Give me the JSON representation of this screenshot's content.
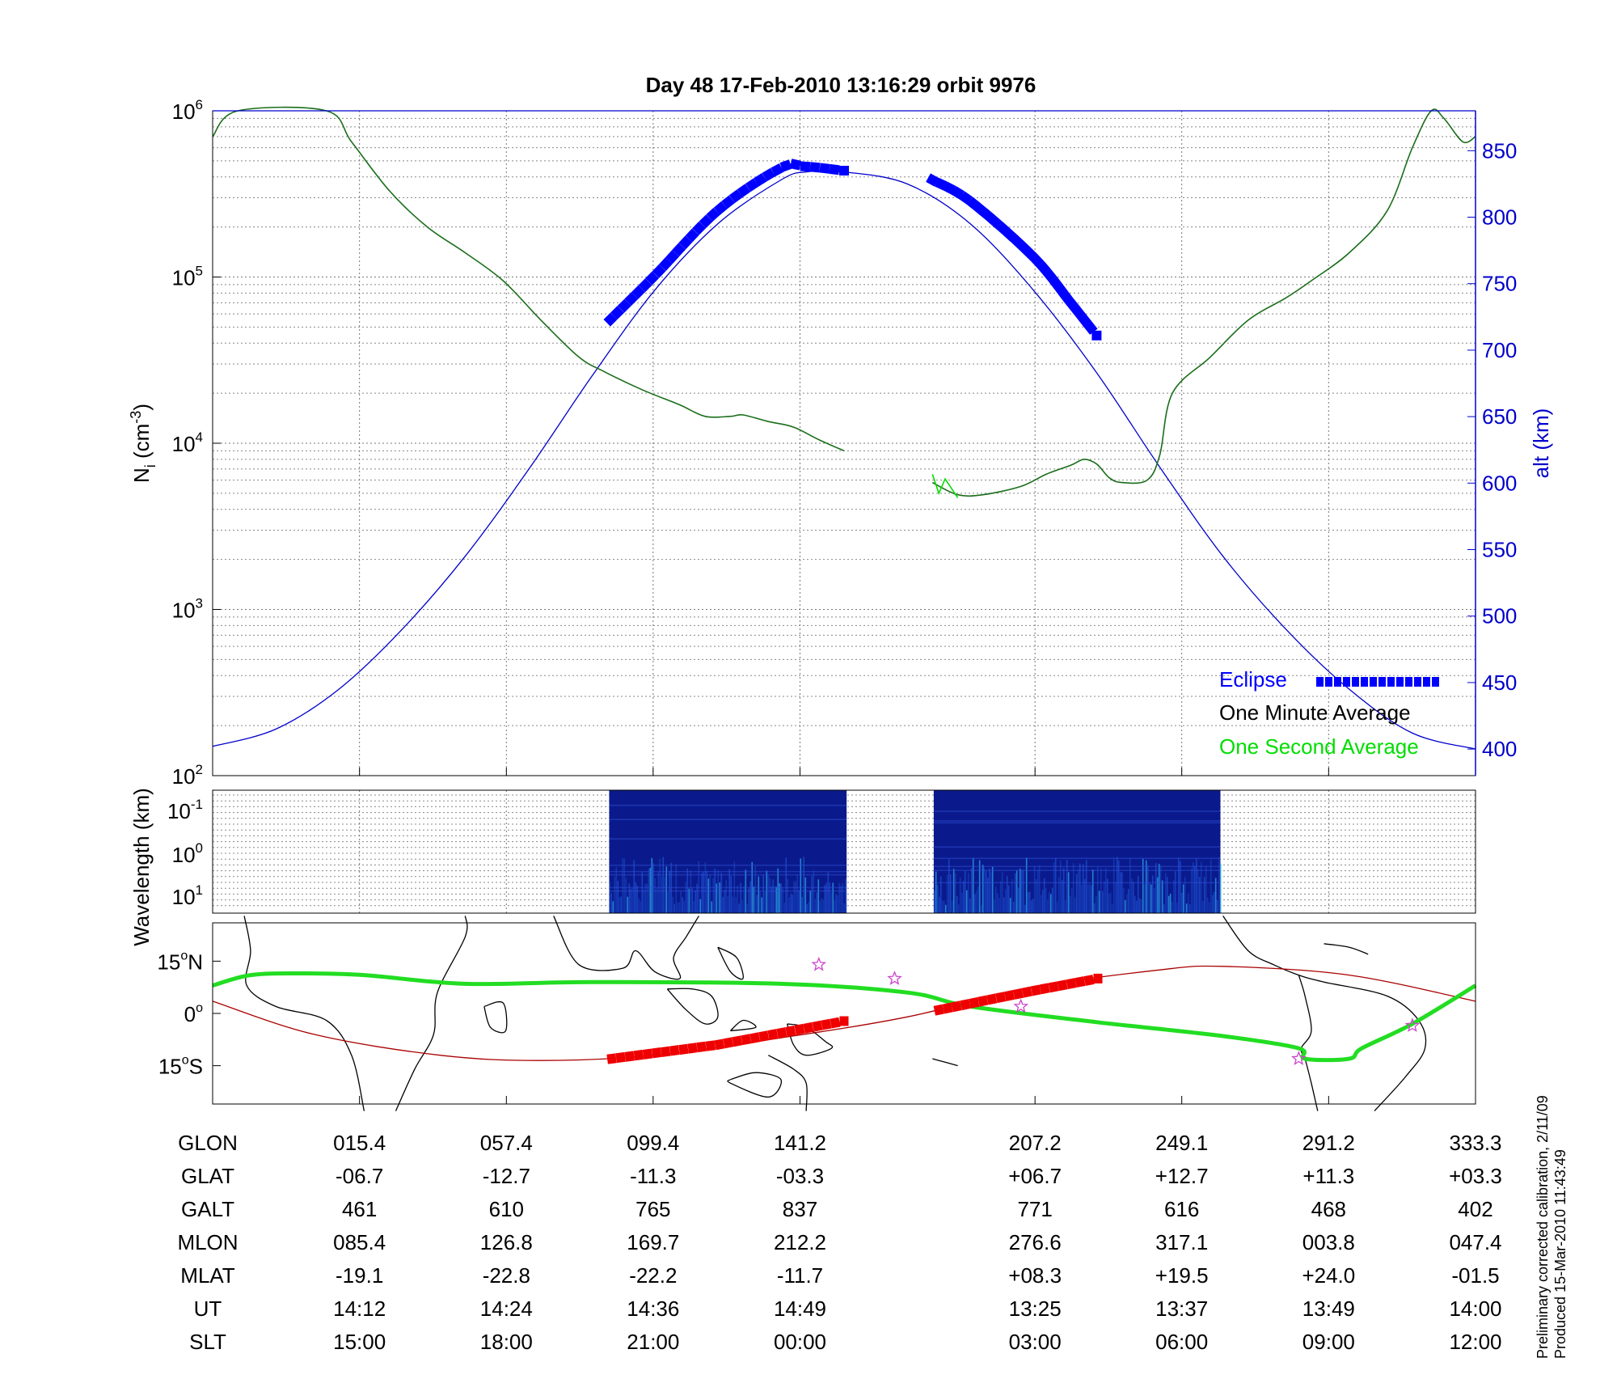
{
  "title": "Day 48  17-Feb-2010 13:16:29   orbit 9976",
  "colors": {
    "altitude": "#0000cc",
    "eclipse": "#0000ff",
    "one_minute": "#000000",
    "one_second": "#00dd00",
    "density_trace": "#1a6e1a",
    "track_green": "#22dd22",
    "track_red_line": "#aa0000",
    "track_red_marker": "#ee0000",
    "star": "#cc44cc",
    "spectrum_bg": "#0a1a8c"
  },
  "chart_data": [
    {
      "type": "line",
      "panel": "ion density and altitude",
      "ylabel": "Ni (cm-3)",
      "ylabel_base": "N",
      "ylabel_sub": "i",
      "ylabel_unit": " (cm",
      "ylabel_sup": "-3",
      "ylabel_close": ")",
      "yscale": "log",
      "ylim": [
        100,
        1000000
      ],
      "y_ticks": [
        {
          "base": "10",
          "exp": "2",
          "value": 100
        },
        {
          "base": "10",
          "exp": "3",
          "value": 1000
        },
        {
          "base": "10",
          "exp": "4",
          "value": 10000
        },
        {
          "base": "10",
          "exp": "5",
          "value": 100000
        },
        {
          "base": "10",
          "exp": "6",
          "value": 1000000
        }
      ],
      "y2label": "alt (km)",
      "y2lim": [
        380,
        880
      ],
      "y2_ticks": [
        "400",
        "450",
        "500",
        "550",
        "600",
        "650",
        "700",
        "750",
        "800",
        "850"
      ],
      "xlim": [
        0,
        1
      ],
      "x_ticks": [
        0.1163,
        0.2326,
        0.3488,
        0.4651,
        0.6512,
        0.7674,
        0.8837,
        1.0
      ],
      "grid": true,
      "legend": "bottom-right",
      "legend_entries": [
        {
          "label": "Eclipse",
          "color": "#0000ff"
        },
        {
          "label": "One Minute Average",
          "color": "#000000"
        },
        {
          "label": "One Second Average",
          "color": "#00dd00"
        }
      ],
      "series": [
        {
          "name": "One Minute Average",
          "segments": [
            [
              [
                0,
                700000
              ],
              [
                0.02,
                1000000
              ],
              [
                0.09,
                1000000
              ],
              [
                0.11,
                650000
              ],
              [
                0.14,
                330000
              ],
              [
                0.17,
                200000
              ],
              [
                0.2,
                140000
              ],
              [
                0.23,
                95000
              ],
              [
                0.26,
                55000
              ],
              [
                0.29,
                33000
              ],
              [
                0.31,
                27000
              ],
              [
                0.34,
                21000
              ],
              [
                0.37,
                17000
              ],
              [
                0.39,
                14500
              ],
              [
                0.41,
                14500
              ],
              [
                0.42,
                14800
              ],
              [
                0.44,
                13500
              ],
              [
                0.46,
                12500
              ],
              [
                0.48,
                10500
              ],
              [
                0.5,
                9000
              ]
            ],
            [
              [
                0.57,
                5800
              ],
              [
                0.59,
                4900
              ],
              [
                0.61,
                4900
              ],
              [
                0.64,
                5500
              ],
              [
                0.66,
                6500
              ],
              [
                0.68,
                7400
              ],
              [
                0.69,
                8000
              ],
              [
                0.7,
                7500
              ],
              [
                0.71,
                6200
              ],
              [
                0.72,
                5800
              ],
              [
                0.74,
                6000
              ],
              [
                0.75,
                8500
              ],
              [
                0.76,
                20000
              ],
              [
                0.79,
                33000
              ],
              [
                0.82,
                55000
              ],
              [
                0.85,
                75000
              ],
              [
                0.87,
                95000
              ],
              [
                0.9,
                140000
              ],
              [
                0.93,
                250000
              ],
              [
                0.95,
                600000
              ],
              [
                0.965,
                1000000
              ],
              [
                0.975,
                900000
              ],
              [
                0.99,
                650000
              ],
              [
                1.0,
                700000
              ]
            ]
          ]
        },
        {
          "name": "One Second Average",
          "segments": [
            [
              [
                0.57,
                6500
              ],
              [
                0.575,
                5000
              ],
              [
                0.58,
                6100
              ],
              [
                0.59,
                4700
              ]
            ]
          ]
        },
        {
          "name": "alt (km)",
          "axis": "right",
          "segments": [
            [
              [
                0,
                402
              ],
              [
                0.05,
                415
              ],
              [
                0.1,
                445
              ],
              [
                0.15,
                490
              ],
              [
                0.2,
                545
              ],
              [
                0.25,
                610
              ],
              [
                0.3,
                680
              ],
              [
                0.35,
                745
              ],
              [
                0.4,
                795
              ],
              [
                0.45,
                828
              ],
              [
                0.47,
                834
              ],
              [
                0.5,
                834
              ],
              [
                0.55,
                825
              ],
              [
                0.6,
                795
              ],
              [
                0.65,
                745
              ],
              [
                0.7,
                683
              ],
              [
                0.75,
                612
              ],
              [
                0.8,
                545
              ],
              [
                0.85,
                490
              ],
              [
                0.9,
                445
              ],
              [
                0.95,
                412
              ],
              [
                1.0,
                400
              ]
            ]
          ]
        },
        {
          "name": "Eclipse",
          "axis": "right",
          "segments": [
            [
              [
                0.315,
                723
              ],
              [
                0.35,
                756
              ],
              [
                0.4,
                805
              ],
              [
                0.45,
                837
              ],
              [
                0.47,
                838
              ],
              [
                0.5,
                835
              ]
            ],
            [
              [
                0.57,
                828
              ],
              [
                0.6,
                812
              ],
              [
                0.65,
                770
              ],
              [
                0.68,
                735
              ],
              [
                0.7,
                711
              ]
            ]
          ]
        }
      ]
    },
    {
      "type": "heatmap",
      "panel": "wavelength spectrogram",
      "ylabel": "Wavelength (km)",
      "yscale": "log",
      "y_ticks": [
        {
          "base": "10",
          "exp": "-1"
        },
        {
          "base": "10",
          "exp": "0"
        },
        {
          "base": "10",
          "exp": "1"
        }
      ],
      "xlim": [
        0,
        1
      ],
      "segments": [
        [
          0.314,
          0.502
        ],
        [
          0.571,
          0.798
        ]
      ]
    },
    {
      "type": "line",
      "panel": "ground track map",
      "xlim": [
        0,
        1
      ],
      "y_ticks": [
        {
          "deg": "15",
          "hemi": "N",
          "value": 15
        },
        {
          "deg": "0",
          "hemi": "",
          "value": 0
        },
        {
          "deg": "15",
          "hemi": "S",
          "value": -15
        }
      ],
      "ylim": [
        -26,
        26
      ],
      "series": [
        {
          "name": "green track",
          "points": [
            [
              0,
              8
            ],
            [
              0.03,
              11
            ],
            [
              0.07,
              11.5
            ],
            [
              0.12,
              11
            ],
            [
              0.2,
              8.5
            ],
            [
              0.3,
              9
            ],
            [
              0.45,
              8.5
            ],
            [
              0.55,
              6
            ],
            [
              0.6,
              2
            ],
            [
              0.7,
              -2.5
            ],
            [
              0.8,
              -6.5
            ],
            [
              0.86,
              -10
            ],
            [
              0.865,
              -13
            ],
            [
              0.9,
              -13
            ],
            [
              0.91,
              -10
            ],
            [
              0.95,
              -3
            ],
            [
              1.0,
              8
            ]
          ]
        },
        {
          "name": "red track",
          "points": [
            [
              0,
              3.5
            ],
            [
              0.08,
              -6
            ],
            [
              0.18,
              -12
            ],
            [
              0.26,
              -13.5
            ],
            [
              0.35,
              -12
            ],
            [
              0.45,
              -7
            ],
            [
              0.55,
              -1
            ],
            [
              0.65,
              7.5
            ],
            [
              0.75,
              12.5
            ],
            [
              0.8,
              13.5
            ],
            [
              0.9,
              11
            ],
            [
              1.0,
              3.5
            ]
          ]
        },
        {
          "name": "red markers",
          "segments": [
            [
              [
                0.316,
                -13
              ],
              [
                0.4,
                -9
              ],
              [
                0.5,
                -2.2
              ]
            ],
            [
              [
                0.575,
                1
              ],
              [
                0.65,
                6.5
              ],
              [
                0.701,
                10
              ]
            ]
          ]
        },
        {
          "name": "stars",
          "points": [
            [
              0.48,
              14
            ],
            [
              0.54,
              10
            ],
            [
              0.64,
              2
            ],
            [
              0.86,
              -13
            ],
            [
              0.95,
              -3.5
            ]
          ]
        }
      ],
      "land": [
        [
          [
            0.025,
            28
          ],
          [
            0.03,
            18
          ],
          [
            0.027,
            8
          ],
          [
            0.05,
            2
          ],
          [
            0.09,
            -2
          ],
          [
            0.11,
            -12
          ],
          [
            0.12,
            -28
          ]
        ],
        [
          [
            0.145,
            -28
          ],
          [
            0.16,
            -16
          ],
          [
            0.175,
            -6
          ],
          [
            0.178,
            6
          ],
          [
            0.2,
            22
          ],
          [
            0.2,
            28
          ]
        ],
        [
          [
            0.215,
            2
          ],
          [
            0.23,
            3
          ],
          [
            0.232,
            -5
          ],
          [
            0.22,
            -4
          ],
          [
            0.215,
            2
          ]
        ],
        [
          [
            0.27,
            28
          ],
          [
            0.29,
            14
          ],
          [
            0.325,
            13
          ],
          [
            0.335,
            18
          ],
          [
            0.35,
            12
          ],
          [
            0.37,
            10
          ],
          [
            0.365,
            16
          ],
          [
            0.375,
            22
          ],
          [
            0.385,
            28
          ]
        ],
        [
          [
            0.36,
            7
          ],
          [
            0.375,
            1
          ],
          [
            0.39,
            -3
          ],
          [
            0.4,
            -1
          ],
          [
            0.395,
            5
          ],
          [
            0.38,
            7
          ],
          [
            0.36,
            7
          ]
        ],
        [
          [
            0.41,
            -5
          ],
          [
            0.43,
            -4
          ],
          [
            0.42,
            -2
          ],
          [
            0.41,
            -5
          ]
        ],
        [
          [
            0.455,
            -3
          ],
          [
            0.47,
            -4
          ],
          [
            0.485,
            -8
          ],
          [
            0.49,
            -10
          ],
          [
            0.47,
            -12
          ],
          [
            0.46,
            -9
          ],
          [
            0.455,
            -3
          ]
        ],
        [
          [
            0.44,
            -12
          ],
          [
            0.46,
            -16
          ],
          [
            0.47,
            -20
          ],
          [
            0.47,
            -28
          ]
        ],
        [
          [
            0.41,
            -19
          ],
          [
            0.43,
            -17
          ],
          [
            0.45,
            -19
          ],
          [
            0.44,
            -24
          ],
          [
            0.41,
            -20
          ],
          [
            0.41,
            -19
          ]
        ],
        [
          [
            0.4,
            19
          ],
          [
            0.41,
            12
          ],
          [
            0.42,
            10
          ],
          [
            0.415,
            16
          ],
          [
            0.4,
            19
          ]
        ],
        [
          [
            0.8,
            28
          ],
          [
            0.82,
            18
          ],
          [
            0.84,
            14
          ],
          [
            0.86,
            11
          ],
          [
            0.88,
            9
          ],
          [
            0.93,
            5
          ],
          [
            0.955,
            -2
          ],
          [
            0.96,
            -10
          ],
          [
            0.945,
            -18
          ],
          [
            0.92,
            -28
          ]
        ],
        [
          [
            0.86,
            11
          ],
          [
            0.865,
            5
          ],
          [
            0.87,
            -5
          ],
          [
            0.862,
            -10
          ],
          [
            0.865,
            -13
          ],
          [
            0.87,
            -20
          ],
          [
            0.875,
            -28
          ]
        ],
        [
          [
            0.88,
            20
          ],
          [
            0.9,
            19
          ],
          [
            0.915,
            17
          ]
        ],
        [
          [
            0.57,
            -13
          ],
          [
            0.58,
            -14
          ],
          [
            0.59,
            -15
          ]
        ]
      ]
    }
  ],
  "table": {
    "rows": [
      {
        "label": "GLON",
        "values": [
          "015.4",
          "057.4",
          "099.4",
          "141.2",
          "207.2",
          "249.1",
          "291.2",
          "333.3"
        ]
      },
      {
        "label": "GLAT",
        "values": [
          "-06.7",
          "-12.7",
          "-11.3",
          "-03.3",
          "+06.7",
          "+12.7",
          "+11.3",
          "+03.3"
        ]
      },
      {
        "label": "GALT",
        "values": [
          "461",
          "610",
          "765",
          "837",
          "771",
          "616",
          "468",
          "402"
        ]
      },
      {
        "label": "MLON",
        "values": [
          "085.4",
          "126.8",
          "169.7",
          "212.2",
          "276.6",
          "317.1",
          "003.8",
          "047.4"
        ]
      },
      {
        "label": "MLAT",
        "values": [
          "-19.1",
          "-22.8",
          "-22.2",
          "-11.7",
          "+08.3",
          "+19.5",
          "+24.0",
          "-01.5"
        ]
      },
      {
        "label": "UT",
        "values": [
          "14:12",
          "14:24",
          "14:36",
          "14:49",
          "13:25",
          "13:37",
          "13:49",
          "14:00"
        ]
      },
      {
        "label": "SLT",
        "values": [
          "15:00",
          "18:00",
          "21:00",
          "00:00",
          "03:00",
          "06:00",
          "09:00",
          "12:00"
        ]
      }
    ]
  },
  "footnote": {
    "line1": "Preliminary corrected calibration, 2/11/09",
    "line2": "Produced 15-Mar-2010 11:43:49"
  }
}
